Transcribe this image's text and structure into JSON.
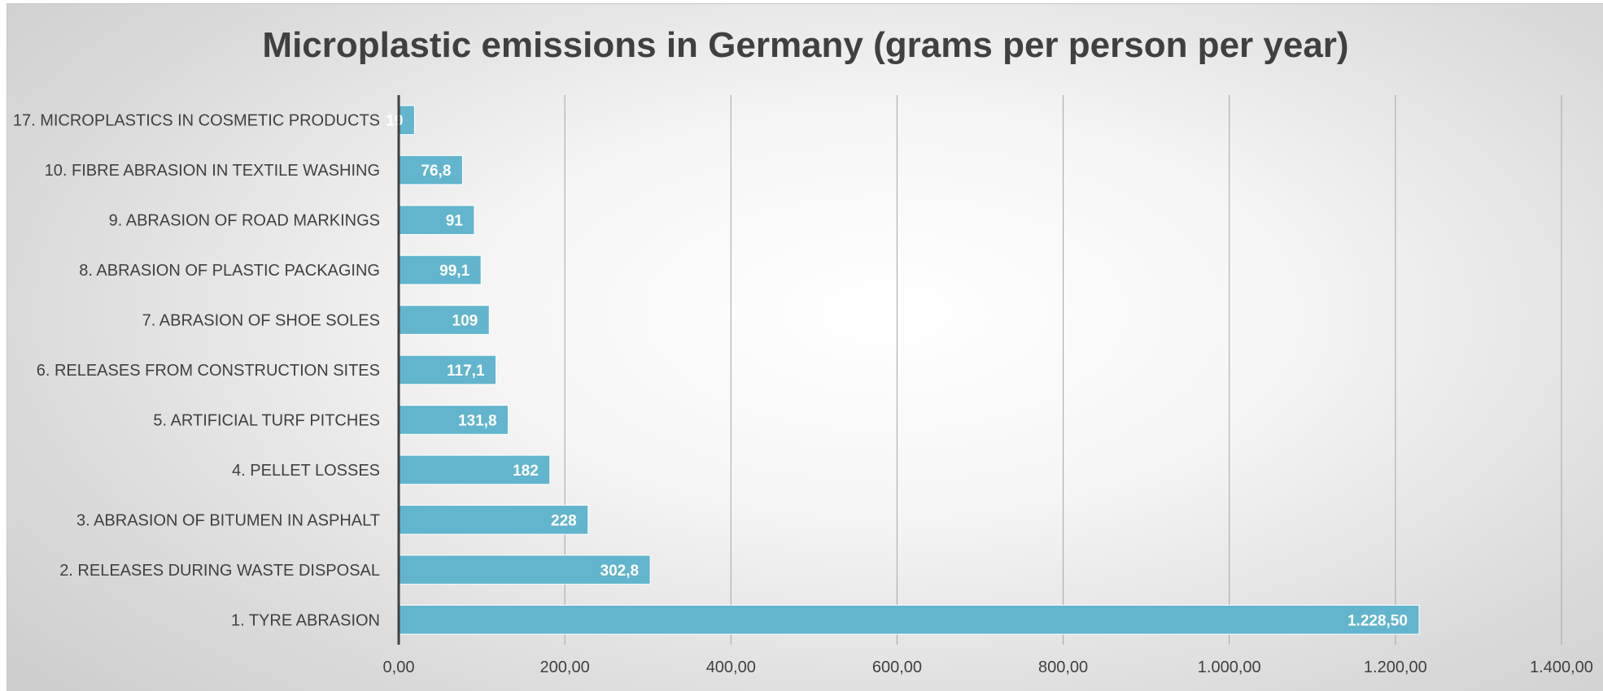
{
  "chart_data": {
    "type": "bar",
    "orientation": "horizontal",
    "title": "Microplastic emissions in Germany (grams per person per year)",
    "categories": [
      "1. TYRE ABRASION",
      "2. RELEASES DURING WASTE DISPOSAL",
      "3. ABRASION OF BITUMEN IN ASPHALT",
      "4. PELLET LOSSES",
      "5. ARTIFICIAL TURF PITCHES",
      "6. RELEASES FROM CONSTRUCTION SITES",
      "7. ABRASION OF SHOE SOLES",
      "8. ABRASION OF PLASTIC PACKAGING",
      "9. ABRASION OF ROAD MARKINGS",
      "10. FIBRE ABRASION IN TEXTILE WASHING",
      "17. MICROPLASTICS IN COSMETIC PRODUCTS"
    ],
    "values": [
      1228.5,
      302.8,
      228,
      182,
      131.8,
      117.1,
      109,
      99.1,
      91,
      76.8,
      19
    ],
    "data_labels": [
      "1.228,50",
      "302,8",
      "228",
      "182",
      "131,8",
      "117,1",
      "109",
      "99,1",
      "91",
      "76,8",
      "19"
    ],
    "xlim": [
      0,
      1400
    ],
    "x_ticks": [
      0,
      200,
      400,
      600,
      800,
      1000,
      1200,
      1400
    ],
    "x_tick_labels": [
      "0,00",
      "200,00",
      "400,00",
      "600,00",
      "800,00",
      "1.000,00",
      "1.200,00",
      "1.400,00"
    ],
    "grid": true,
    "bar_color": "#62b5cc",
    "axis_color": "#404040"
  }
}
